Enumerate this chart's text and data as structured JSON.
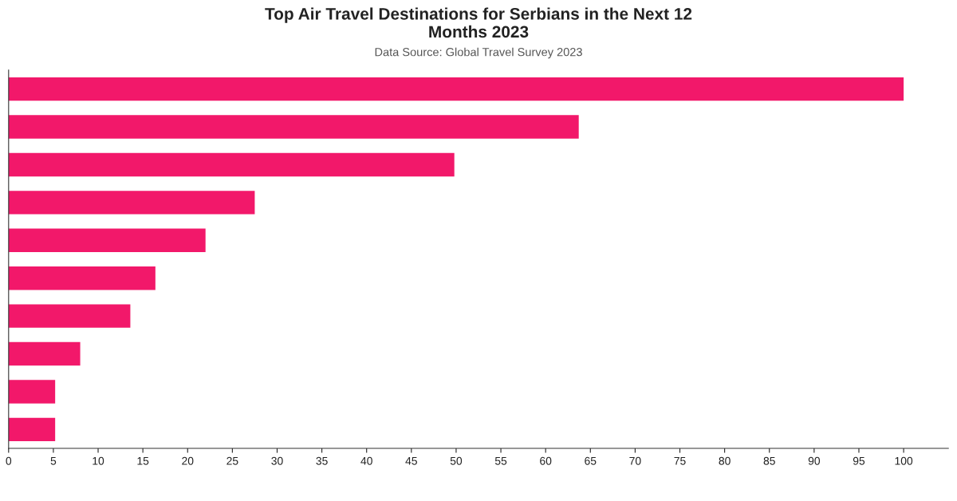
{
  "chart_data": {
    "type": "bar",
    "orientation": "horizontal",
    "title": "Top Air Travel Destinations for Serbians in the Next 12\nMonths 2023",
    "subtitle": "Data Source: Global Travel Survey 2023",
    "categories": [
      null,
      null,
      null,
      null,
      null,
      null,
      null,
      null,
      null,
      null
    ],
    "values": [
      100,
      63.7,
      49.8,
      27.5,
      22.0,
      16.4,
      13.6,
      8.0,
      5.2,
      5.2
    ],
    "color": "#f2186a",
    "xlim": [
      0,
      105
    ],
    "xticks": [
      0,
      5,
      10,
      15,
      20,
      25,
      30,
      35,
      40,
      45,
      50,
      55,
      60,
      65,
      70,
      75,
      80,
      85,
      90,
      95,
      100
    ],
    "tick_labels": "x",
    "grid": false,
    "legend": false
  }
}
